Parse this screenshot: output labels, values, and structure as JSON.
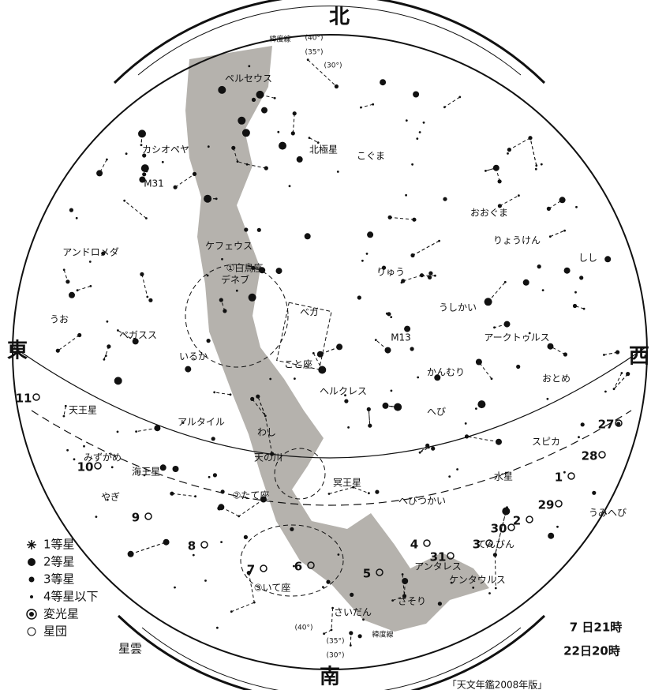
{
  "directions": {
    "north": "北",
    "south": "南",
    "east": "東",
    "west": "西"
  },
  "latitude_top": {
    "name": "緯度線",
    "marks": [
      "(40°)",
      "(35°)",
      "(30°)"
    ]
  },
  "latitude_bottom": {
    "name": "緯度線",
    "marks": [
      "(40°)",
      "(35°)",
      "(30°)"
    ]
  },
  "labels": [
    "ペルセウス",
    "カシオペヤ",
    "M31",
    "アンドロメダ",
    "ケフェウス",
    "北極星",
    "こぐま",
    "おおぐま",
    "りょうけん",
    "しし",
    "①白鳥座",
    "デネブ",
    "ベガ",
    "こと座",
    "いるか",
    "ペガスス",
    "うお",
    "りゅう",
    "M13",
    "うしかい",
    "アークトゥルス",
    "かんむり",
    "おとめ",
    "ヘルクレス",
    "へび",
    "アルタイル",
    "わし",
    "天の川",
    "②たて座",
    "みずがめ",
    "海王星",
    "やぎ",
    "天王星",
    "冥王星",
    "へびつかい",
    "水星",
    "スピカ",
    "うみへび",
    "てんびん",
    "アンタレス",
    "ケンタウルス",
    "③いて座",
    "さそり",
    "さいだん"
  ],
  "dates": [
    "11",
    "10",
    "9",
    "8",
    "7",
    "6",
    "5",
    "4",
    "31",
    "30",
    "3",
    "29",
    "2",
    "28",
    "27",
    "1"
  ],
  "legend": [
    "1等星",
    "2等星",
    "3等星",
    "4等星以下",
    "変光星",
    "星団",
    "星雲"
  ],
  "times": [
    "7 日21時",
    "22日20時"
  ],
  "source": "「天文年鑑2008年版」"
}
